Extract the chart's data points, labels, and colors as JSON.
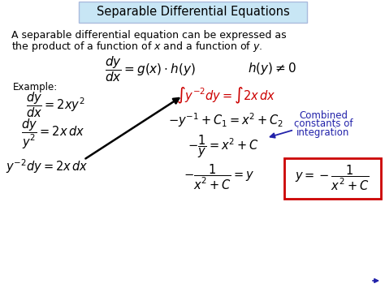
{
  "title": "Separable Differential Equations",
  "title_bg": "#c8e6f5",
  "bg_color": "#ffffff",
  "text_color": "#000000",
  "red_color": "#cc0000",
  "blue_color": "#2222aa",
  "box_border_color": "#cc0000",
  "intro_line1": "A separable differential equation can be expressed as",
  "intro_line2": "the product of a function of $x$ and a function of $y$.",
  "main_formula": "$\\dfrac{dy}{dx} = g\\left(x\\right)\\cdot h\\left(y\\right)$",
  "side_formula": "$h\\left(y\\right)\\neq 0$",
  "example_label": "Example:",
  "ex_eq1": "$\\dfrac{dy}{dx} = 2xy^2$",
  "ex_eq2": "$\\dfrac{dy}{y^2} = 2x\\,dx$",
  "ex_eq3": "$y^{-2}dy = 2x\\,dx$",
  "step1": "$\\int y^{-2}dy = \\int 2x\\,dx$",
  "step2": "$-y^{-1} + C_1 = x^2 + C_2$",
  "step3": "$-\\dfrac{1}{y} = x^2 + C$",
  "step4": "$-\\dfrac{1}{x^2+C} = y$",
  "boxed": "$y = -\\dfrac{1}{x^2+C}$",
  "annotation_line1": "Combined",
  "annotation_line2": "constants of",
  "annotation_line3": "integration"
}
